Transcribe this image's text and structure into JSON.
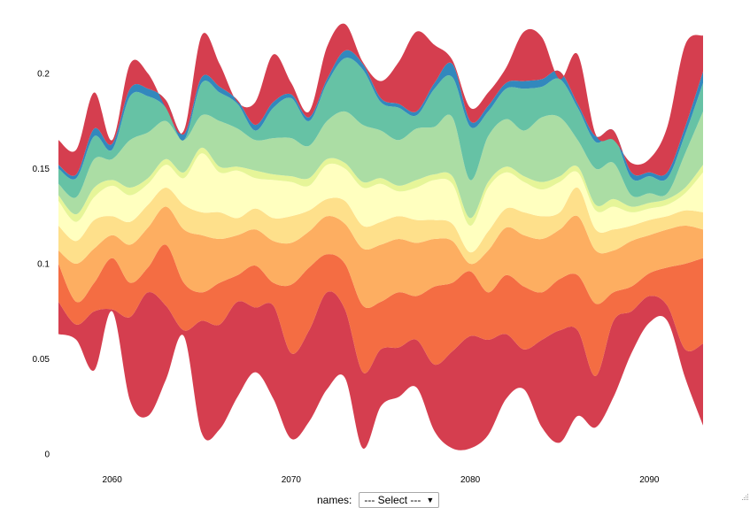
{
  "chart_data": {
    "type": "area",
    "x_ticks": [
      2060,
      2070,
      2080,
      2090
    ],
    "x_range": [
      2057,
      2093
    ],
    "y_ticks": [
      "0",
      "0.05",
      "0.1",
      "0.15",
      "0.2"
    ],
    "y_range": [
      0,
      0.22
    ],
    "grid": false,
    "colors": [
      "#d53e4f",
      "#f46d43",
      "#fdae61",
      "#fee08b",
      "#ffffbf",
      "#e6f598",
      "#abdda4",
      "#66c2a5",
      "#3288bd",
      "#d53e4f"
    ],
    "x": [
      2057,
      2058,
      2059,
      2060,
      2061,
      2062,
      2063,
      2064,
      2065,
      2066,
      2067,
      2068,
      2069,
      2070,
      2071,
      2072,
      2073,
      2074,
      2075,
      2076,
      2077,
      2078,
      2079,
      2080,
      2081,
      2082,
      2083,
      2084,
      2085,
      2086,
      2087,
      2088,
      2089,
      2090,
      2091,
      2092,
      2093
    ],
    "boundaries": [
      [
        0.063,
        0.06,
        0.044,
        0.075,
        0.028,
        0.02,
        0.039,
        0.062,
        0.011,
        0.013,
        0.03,
        0.043,
        0.029,
        0.008,
        0.017,
        0.034,
        0.04,
        0.003,
        0.025,
        0.03,
        0.035,
        0.012,
        0.003,
        0.003,
        0.01,
        0.029,
        0.034,
        0.014,
        0.006,
        0.02,
        0.014,
        0.03,
        0.053,
        0.069,
        0.07,
        0.04,
        0.015
      ],
      [
        0.08,
        0.068,
        0.075,
        0.076,
        0.072,
        0.085,
        0.078,
        0.065,
        0.07,
        0.068,
        0.08,
        0.077,
        0.078,
        0.053,
        0.065,
        0.085,
        0.076,
        0.043,
        0.055,
        0.056,
        0.06,
        0.047,
        0.054,
        0.062,
        0.06,
        0.063,
        0.055,
        0.06,
        0.065,
        0.065,
        0.041,
        0.07,
        0.075,
        0.083,
        0.078,
        0.055,
        0.058
      ],
      [
        0.1,
        0.08,
        0.09,
        0.103,
        0.09,
        0.098,
        0.11,
        0.09,
        0.085,
        0.09,
        0.094,
        0.099,
        0.09,
        0.089,
        0.098,
        0.105,
        0.1,
        0.078,
        0.08,
        0.085,
        0.083,
        0.088,
        0.09,
        0.096,
        0.085,
        0.094,
        0.088,
        0.085,
        0.092,
        0.094,
        0.079,
        0.085,
        0.088,
        0.095,
        0.098,
        0.1,
        0.103
      ],
      [
        0.107,
        0.1,
        0.108,
        0.115,
        0.11,
        0.119,
        0.13,
        0.118,
        0.115,
        0.113,
        0.115,
        0.118,
        0.112,
        0.111,
        0.117,
        0.125,
        0.121,
        0.108,
        0.11,
        0.113,
        0.111,
        0.113,
        0.112,
        0.1,
        0.107,
        0.119,
        0.115,
        0.113,
        0.118,
        0.125,
        0.107,
        0.107,
        0.112,
        0.115,
        0.118,
        0.12,
        0.118
      ],
      [
        0.12,
        0.112,
        0.123,
        0.125,
        0.122,
        0.131,
        0.14,
        0.131,
        0.127,
        0.127,
        0.124,
        0.129,
        0.124,
        0.125,
        0.128,
        0.134,
        0.133,
        0.12,
        0.122,
        0.125,
        0.123,
        0.123,
        0.121,
        0.106,
        0.117,
        0.129,
        0.127,
        0.125,
        0.127,
        0.14,
        0.118,
        0.118,
        0.12,
        0.123,
        0.125,
        0.128,
        0.127
      ],
      [
        0.133,
        0.122,
        0.135,
        0.141,
        0.136,
        0.142,
        0.152,
        0.145,
        0.158,
        0.148,
        0.149,
        0.145,
        0.144,
        0.143,
        0.141,
        0.152,
        0.15,
        0.14,
        0.142,
        0.138,
        0.14,
        0.144,
        0.142,
        0.12,
        0.14,
        0.148,
        0.143,
        0.139,
        0.143,
        0.148,
        0.128,
        0.13,
        0.127,
        0.129,
        0.131,
        0.137,
        0.148
      ],
      [
        0.136,
        0.126,
        0.14,
        0.144,
        0.14,
        0.145,
        0.155,
        0.148,
        0.161,
        0.151,
        0.151,
        0.149,
        0.147,
        0.146,
        0.145,
        0.155,
        0.153,
        0.143,
        0.145,
        0.141,
        0.144,
        0.147,
        0.146,
        0.124,
        0.143,
        0.151,
        0.146,
        0.143,
        0.146,
        0.151,
        0.131,
        0.134,
        0.13,
        0.132,
        0.134,
        0.14,
        0.152
      ],
      [
        0.142,
        0.135,
        0.155,
        0.155,
        0.165,
        0.169,
        0.175,
        0.165,
        0.178,
        0.175,
        0.171,
        0.165,
        0.166,
        0.166,
        0.162,
        0.175,
        0.18,
        0.173,
        0.17,
        0.165,
        0.171,
        0.172,
        0.177,
        0.144,
        0.167,
        0.176,
        0.17,
        0.177,
        0.177,
        0.165,
        0.15,
        0.153,
        0.136,
        0.137,
        0.137,
        0.158,
        0.18
      ],
      [
        0.15,
        0.145,
        0.167,
        0.16,
        0.188,
        0.188,
        0.182,
        0.165,
        0.195,
        0.19,
        0.184,
        0.17,
        0.182,
        0.187,
        0.175,
        0.195,
        0.208,
        0.202,
        0.185,
        0.182,
        0.178,
        0.192,
        0.198,
        0.172,
        0.18,
        0.192,
        0.192,
        0.193,
        0.197,
        0.182,
        0.164,
        0.167,
        0.145,
        0.146,
        0.145,
        0.168,
        0.195
      ],
      [
        0.152,
        0.147,
        0.171,
        0.163,
        0.192,
        0.192,
        0.186,
        0.168,
        0.198,
        0.193,
        0.186,
        0.173,
        0.185,
        0.189,
        0.177,
        0.197,
        0.212,
        0.205,
        0.187,
        0.184,
        0.18,
        0.195,
        0.205,
        0.175,
        0.183,
        0.195,
        0.196,
        0.197,
        0.201,
        0.184,
        0.167,
        0.17,
        0.148,
        0.148,
        0.148,
        0.172,
        0.201
      ],
      [
        0.165,
        0.16,
        0.19,
        0.165,
        0.205,
        0.2,
        0.182,
        0.17,
        0.22,
        0.205,
        0.185,
        0.185,
        0.21,
        0.195,
        0.18,
        0.214,
        0.226,
        0.206,
        0.196,
        0.206,
        0.222,
        0.215,
        0.207,
        0.182,
        0.19,
        0.203,
        0.222,
        0.219,
        0.197,
        0.21,
        0.168,
        0.165,
        0.153,
        0.155,
        0.172,
        0.215,
        0.22
      ]
    ]
  },
  "controls": {
    "names_label": "names:",
    "select_value": "--- Select ---",
    "caret": "▼"
  }
}
